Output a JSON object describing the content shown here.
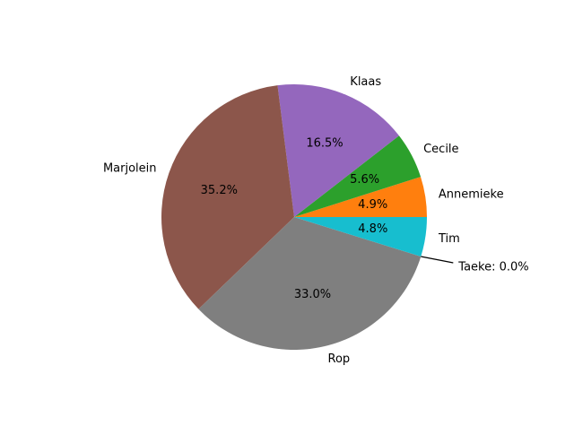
{
  "chart_data": {
    "type": "pie",
    "title": "",
    "start_angle_deg": 0,
    "direction": "counterclockwise",
    "slices": [
      {
        "label": "Annemieke",
        "value": 4.9,
        "pct_label": "4.9%",
        "color": "#ff7f0e"
      },
      {
        "label": "Cecile",
        "value": 5.6,
        "pct_label": "5.6%",
        "color": "#2ca02c"
      },
      {
        "label": "Klaas",
        "value": 16.5,
        "pct_label": "16.5%",
        "color": "#9467bd"
      },
      {
        "label": "Marjolein",
        "value": 35.2,
        "pct_label": "35.2%",
        "color": "#8c564b"
      },
      {
        "label": "Rop",
        "value": 33.0,
        "pct_label": "33.0%",
        "color": "#7f7f7f"
      },
      {
        "label": "Taeke",
        "value": 0.0,
        "pct_label": "",
        "color": "#e377c2"
      },
      {
        "label": "Tim",
        "value": 4.8,
        "pct_label": "4.8%",
        "color": "#17becf"
      }
    ],
    "annotations": [
      {
        "text": "Taeke: 0.0%",
        "points_to": "Taeke"
      }
    ]
  }
}
